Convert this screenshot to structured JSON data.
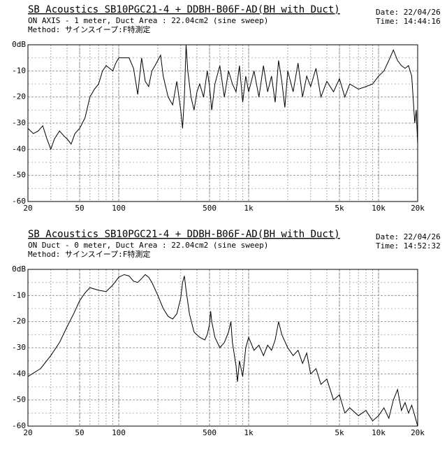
{
  "chart_data": [
    {
      "type": "line",
      "title": "SB Acoustics SB10PGC21-4 + DDBH-B06F-AD(BH with Duct)",
      "subtitle": "ON AXIS - 1 meter, Duct Area : 22.04cm2  (sine sweep)",
      "method": "Method: サインスイープ:F特測定",
      "date": "Date: 22/04/26",
      "time": "Time: 14:44:16",
      "log_x": true,
      "grid": true,
      "color": "#000000",
      "xlim": [
        20,
        20000
      ],
      "ylim": [
        -60,
        0
      ],
      "xticks": [
        20,
        50,
        100,
        500,
        {
          "value": 1000,
          "label": "1k"
        },
        {
          "value": 5000,
          "label": "5k"
        },
        {
          "value": 10000,
          "label": "10k"
        },
        {
          "value": 20000,
          "label": "20k"
        }
      ],
      "yticks": [
        {
          "value": 0,
          "label": "0dB"
        },
        -10,
        -20,
        -30,
        -40,
        -50,
        -60
      ],
      "x": [
        20,
        22,
        24,
        26,
        28,
        30,
        32,
        35,
        38,
        40,
        43,
        46,
        50,
        55,
        60,
        65,
        70,
        75,
        80,
        85,
        90,
        95,
        100,
        110,
        120,
        130,
        140,
        150,
        160,
        170,
        180,
        190,
        200,
        210,
        220,
        240,
        260,
        280,
        300,
        310,
        320,
        330,
        340,
        360,
        380,
        400,
        420,
        450,
        480,
        500,
        520,
        550,
        600,
        650,
        700,
        750,
        800,
        850,
        900,
        950,
        1000,
        1100,
        1200,
        1300,
        1400,
        1500,
        1600,
        1700,
        1800,
        1900,
        2000,
        2200,
        2400,
        2600,
        2800,
        3000,
        3300,
        3600,
        4000,
        4500,
        5000,
        5500,
        6000,
        7000,
        8000,
        9000,
        10000,
        11000,
        12000,
        13000,
        14000,
        15000,
        16000,
        17000,
        18000,
        19000,
        19500,
        20000
      ],
      "values": [
        -32,
        -34,
        -33,
        -31,
        -36,
        -40,
        -36,
        -33,
        -35,
        -36,
        -38,
        -34,
        -32,
        -28,
        -20,
        -17,
        -15,
        -10,
        -8,
        -9,
        -10,
        -7,
        -5,
        -5,
        -5,
        -9,
        -19,
        -5,
        -14,
        -16,
        -10,
        -8,
        -6,
        -4,
        -12,
        -20,
        -23,
        -14,
        -25,
        -32,
        -20,
        0,
        -10,
        -20,
        -25,
        -18,
        -15,
        -20,
        -10,
        -16,
        -25,
        -15,
        -8,
        -20,
        -10,
        -15,
        -18,
        -8,
        -22,
        -12,
        -18,
        -10,
        -20,
        -8,
        -18,
        -12,
        -22,
        -6,
        -14,
        -24,
        -10,
        -18,
        -7,
        -20,
        -12,
        -16,
        -9,
        -20,
        -14,
        -18,
        -13,
        -20,
        -15,
        -17,
        -16,
        -15,
        -12,
        -10,
        -6,
        -2,
        -6,
        -8,
        -9,
        -8,
        -12,
        -30,
        -25,
        -38
      ]
    },
    {
      "type": "line",
      "title": "SB Acoustics SB10PGC21-4 + DDBH-B06F-AD(BH with Duct)",
      "subtitle": "ON Duct - 0 meter, Duct Area : 22.04cm2  (sine sweep)",
      "method": "Method: サインスイープ:F特測定",
      "date": "Date: 22/04/26",
      "time": "Time: 14:52:32",
      "log_x": true,
      "grid": true,
      "color": "#000000",
      "xlim": [
        20,
        20000
      ],
      "ylim": [
        -60,
        0
      ],
      "xticks": [
        20,
        50,
        100,
        500,
        {
          "value": 1000,
          "label": "1k"
        },
        {
          "value": 5000,
          "label": "5k"
        },
        {
          "value": 10000,
          "label": "10k"
        },
        {
          "value": 20000,
          "label": "20k"
        }
      ],
      "yticks": [
        {
          "value": 0,
          "label": "0dB"
        },
        -10,
        -20,
        -30,
        -40,
        -50,
        -60
      ],
      "x": [
        20,
        25,
        30,
        35,
        40,
        45,
        50,
        55,
        60,
        70,
        80,
        90,
        100,
        110,
        120,
        130,
        140,
        150,
        160,
        170,
        180,
        200,
        220,
        240,
        260,
        280,
        300,
        310,
        320,
        330,
        350,
        380,
        420,
        460,
        480,
        500,
        510,
        520,
        550,
        600,
        650,
        700,
        730,
        750,
        800,
        820,
        850,
        900,
        950,
        1000,
        1100,
        1200,
        1300,
        1400,
        1500,
        1600,
        1700,
        1800,
        2000,
        2200,
        2400,
        2600,
        2800,
        3000,
        3300,
        3600,
        4000,
        4500,
        5000,
        5500,
        6000,
        7000,
        8000,
        9000,
        10000,
        11000,
        12000,
        13000,
        14000,
        15000,
        16000,
        17000,
        18000,
        19000,
        20000
      ],
      "values": [
        -41,
        -38,
        -33,
        -28,
        -22,
        -17,
        -12,
        -9,
        -7,
        -8,
        -8.5,
        -6,
        -3,
        -2,
        -2.5,
        -4.5,
        -5,
        -3.5,
        -2,
        -3,
        -5,
        -10,
        -15,
        -18,
        -19,
        -17,
        -11,
        -5,
        -2.5,
        -8,
        -17,
        -24,
        -26,
        -27,
        -25,
        -21,
        -16,
        -20,
        -26,
        -30,
        -28,
        -24,
        -20,
        -28,
        -37,
        -43,
        -35,
        -41,
        -30,
        -26,
        -31,
        -29,
        -33,
        -29,
        -31,
        -27,
        -20,
        -25,
        -30,
        -33,
        -31,
        -36,
        -32,
        -40,
        -38,
        -44,
        -42,
        -50,
        -48,
        -55,
        -53,
        -56,
        -54,
        -58,
        -56,
        -53,
        -57,
        -50,
        -46,
        -54,
        -51,
        -55,
        -52,
        -56,
        -60
      ]
    }
  ]
}
